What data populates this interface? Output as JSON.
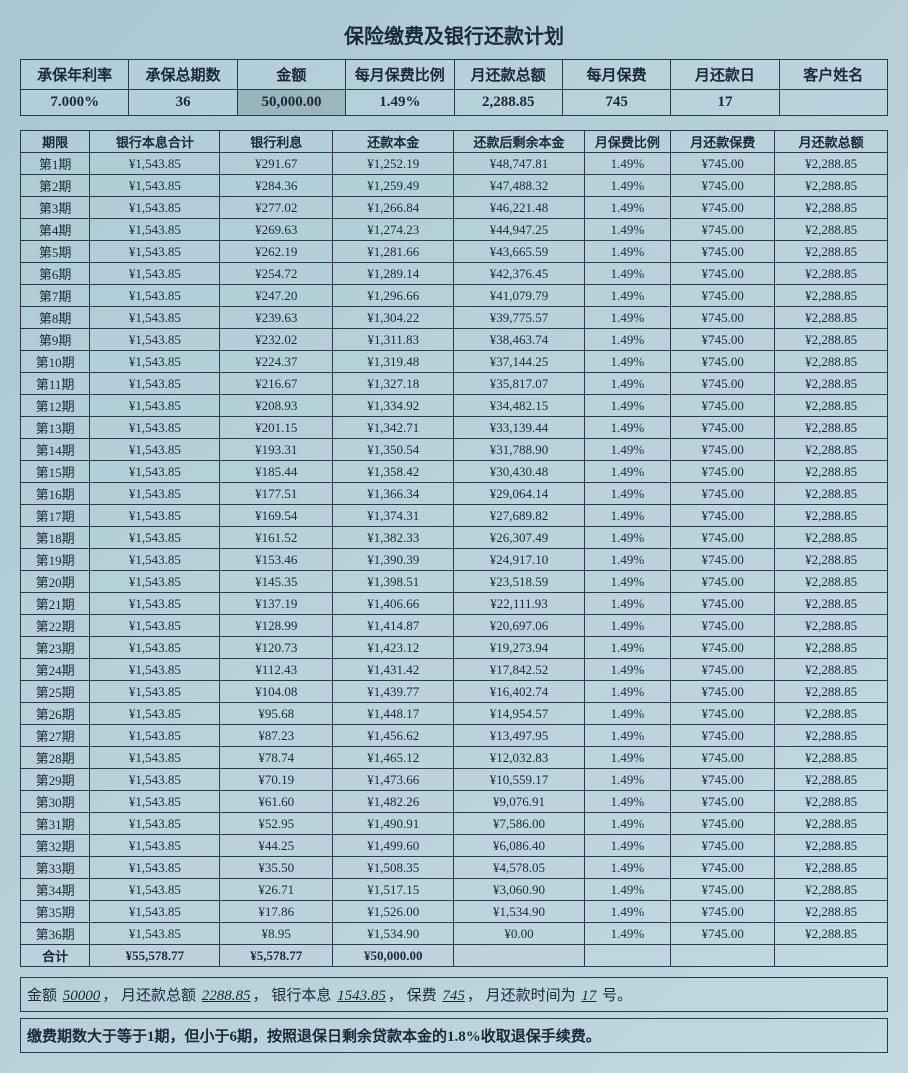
{
  "title": "保险缴费及银行还款计划",
  "summary": {
    "headers": [
      "承保年利率",
      "承保总期数",
      "金额",
      "每月保费比例",
      "月还款总额",
      "每月保费",
      "月还款日",
      "客户姓名"
    ],
    "values": [
      "7.000%",
      "36",
      "50,000.00",
      "1.49%",
      "2,288.85",
      "745",
      "17",
      ""
    ]
  },
  "schedule": {
    "headers": [
      "期限",
      "银行本息合计",
      "银行利息",
      "还款本金",
      "还款后剩余本金",
      "月保费比例",
      "月还款保费",
      "月还款总额"
    ],
    "rows": [
      [
        "第1期",
        "¥1,543.85",
        "¥291.67",
        "¥1,252.19",
        "¥48,747.81",
        "1.49%",
        "¥745.00",
        "¥2,288.85"
      ],
      [
        "第2期",
        "¥1,543.85",
        "¥284.36",
        "¥1,259.49",
        "¥47,488.32",
        "1.49%",
        "¥745.00",
        "¥2,288.85"
      ],
      [
        "第3期",
        "¥1,543.85",
        "¥277.02",
        "¥1,266.84",
        "¥46,221.48",
        "1.49%",
        "¥745.00",
        "¥2,288.85"
      ],
      [
        "第4期",
        "¥1,543.85",
        "¥269.63",
        "¥1,274.23",
        "¥44,947.25",
        "1.49%",
        "¥745.00",
        "¥2,288.85"
      ],
      [
        "第5期",
        "¥1,543.85",
        "¥262.19",
        "¥1,281.66",
        "¥43,665.59",
        "1.49%",
        "¥745.00",
        "¥2,288.85"
      ],
      [
        "第6期",
        "¥1,543.85",
        "¥254.72",
        "¥1,289.14",
        "¥42,376.45",
        "1.49%",
        "¥745.00",
        "¥2,288.85"
      ],
      [
        "第7期",
        "¥1,543.85",
        "¥247.20",
        "¥1,296.66",
        "¥41,079.79",
        "1.49%",
        "¥745.00",
        "¥2,288.85"
      ],
      [
        "第8期",
        "¥1,543.85",
        "¥239.63",
        "¥1,304.22",
        "¥39,775.57",
        "1.49%",
        "¥745.00",
        "¥2,288.85"
      ],
      [
        "第9期",
        "¥1,543.85",
        "¥232.02",
        "¥1,311.83",
        "¥38,463.74",
        "1.49%",
        "¥745.00",
        "¥2,288.85"
      ],
      [
        "第10期",
        "¥1,543.85",
        "¥224.37",
        "¥1,319.48",
        "¥37,144.25",
        "1.49%",
        "¥745.00",
        "¥2,288.85"
      ],
      [
        "第11期",
        "¥1,543.85",
        "¥216.67",
        "¥1,327.18",
        "¥35,817.07",
        "1.49%",
        "¥745.00",
        "¥2,288.85"
      ],
      [
        "第12期",
        "¥1,543.85",
        "¥208.93",
        "¥1,334.92",
        "¥34,482.15",
        "1.49%",
        "¥745.00",
        "¥2,288.85"
      ],
      [
        "第13期",
        "¥1,543.85",
        "¥201.15",
        "¥1,342.71",
        "¥33,139.44",
        "1.49%",
        "¥745.00",
        "¥2,288.85"
      ],
      [
        "第14期",
        "¥1,543.85",
        "¥193.31",
        "¥1,350.54",
        "¥31,788.90",
        "1.49%",
        "¥745.00",
        "¥2,288.85"
      ],
      [
        "第15期",
        "¥1,543.85",
        "¥185.44",
        "¥1,358.42",
        "¥30,430.48",
        "1.49%",
        "¥745.00",
        "¥2,288.85"
      ],
      [
        "第16期",
        "¥1,543.85",
        "¥177.51",
        "¥1,366.34",
        "¥29,064.14",
        "1.49%",
        "¥745.00",
        "¥2,288.85"
      ],
      [
        "第17期",
        "¥1,543.85",
        "¥169.54",
        "¥1,374.31",
        "¥27,689.82",
        "1.49%",
        "¥745.00",
        "¥2,288.85"
      ],
      [
        "第18期",
        "¥1,543.85",
        "¥161.52",
        "¥1,382.33",
        "¥26,307.49",
        "1.49%",
        "¥745.00",
        "¥2,288.85"
      ],
      [
        "第19期",
        "¥1,543.85",
        "¥153.46",
        "¥1,390.39",
        "¥24,917.10",
        "1.49%",
        "¥745.00",
        "¥2,288.85"
      ],
      [
        "第20期",
        "¥1,543.85",
        "¥145.35",
        "¥1,398.51",
        "¥23,518.59",
        "1.49%",
        "¥745.00",
        "¥2,288.85"
      ],
      [
        "第21期",
        "¥1,543.85",
        "¥137.19",
        "¥1,406.66",
        "¥22,111.93",
        "1.49%",
        "¥745.00",
        "¥2,288.85"
      ],
      [
        "第22期",
        "¥1,543.85",
        "¥128.99",
        "¥1,414.87",
        "¥20,697.06",
        "1.49%",
        "¥745.00",
        "¥2,288.85"
      ],
      [
        "第23期",
        "¥1,543.85",
        "¥120.73",
        "¥1,423.12",
        "¥19,273.94",
        "1.49%",
        "¥745.00",
        "¥2,288.85"
      ],
      [
        "第24期",
        "¥1,543.85",
        "¥112.43",
        "¥1,431.42",
        "¥17,842.52",
        "1.49%",
        "¥745.00",
        "¥2,288.85"
      ],
      [
        "第25期",
        "¥1,543.85",
        "¥104.08",
        "¥1,439.77",
        "¥16,402.74",
        "1.49%",
        "¥745.00",
        "¥2,288.85"
      ],
      [
        "第26期",
        "¥1,543.85",
        "¥95.68",
        "¥1,448.17",
        "¥14,954.57",
        "1.49%",
        "¥745.00",
        "¥2,288.85"
      ],
      [
        "第27期",
        "¥1,543.85",
        "¥87.23",
        "¥1,456.62",
        "¥13,497.95",
        "1.49%",
        "¥745.00",
        "¥2,288.85"
      ],
      [
        "第28期",
        "¥1,543.85",
        "¥78.74",
        "¥1,465.12",
        "¥12,032.83",
        "1.49%",
        "¥745.00",
        "¥2,288.85"
      ],
      [
        "第29期",
        "¥1,543.85",
        "¥70.19",
        "¥1,473.66",
        "¥10,559.17",
        "1.49%",
        "¥745.00",
        "¥2,288.85"
      ],
      [
        "第30期",
        "¥1,543.85",
        "¥61.60",
        "¥1,482.26",
        "¥9,076.91",
        "1.49%",
        "¥745.00",
        "¥2,288.85"
      ],
      [
        "第31期",
        "¥1,543.85",
        "¥52.95",
        "¥1,490.91",
        "¥7,586.00",
        "1.49%",
        "¥745.00",
        "¥2,288.85"
      ],
      [
        "第32期",
        "¥1,543.85",
        "¥44.25",
        "¥1,499.60",
        "¥6,086.40",
        "1.49%",
        "¥745.00",
        "¥2,288.85"
      ],
      [
        "第33期",
        "¥1,543.85",
        "¥35.50",
        "¥1,508.35",
        "¥4,578.05",
        "1.49%",
        "¥745.00",
        "¥2,288.85"
      ],
      [
        "第34期",
        "¥1,543.85",
        "¥26.71",
        "¥1,517.15",
        "¥3,060.90",
        "1.49%",
        "¥745.00",
        "¥2,288.85"
      ],
      [
        "第35期",
        "¥1,543.85",
        "¥17.86",
        "¥1,526.00",
        "¥1,534.90",
        "1.49%",
        "¥745.00",
        "¥2,288.85"
      ],
      [
        "第36期",
        "¥1,543.85",
        "¥8.95",
        "¥1,534.90",
        "¥0.00",
        "1.49%",
        "¥745.00",
        "¥2,288.85"
      ]
    ],
    "total": [
      "合计",
      "¥55,578.77",
      "¥5,578.77",
      "¥50,000.00",
      "",
      "",
      "",
      ""
    ]
  },
  "footer": {
    "labels": {
      "amount": "金额",
      "monthly_total": "月还款总额",
      "bank_pi": "银行本息",
      "premium": "保费",
      "day_prefix": "月还款时间为",
      "day_suffix": "号。"
    },
    "values": {
      "amount": "50000",
      "monthly_total": "2288.85",
      "bank_pi": "1543.85",
      "premium": "745",
      "day": "17"
    },
    "note": "缴费期数大于等于1期，但小于6期，按照退保日剩余贷款本金的1.8%收取退保手续费。"
  },
  "colors": {
    "bg_start": "#a8c8d0",
    "bg_end": "#c0d8e0",
    "border": "#2a3a4a",
    "text": "#1a2a3a"
  }
}
